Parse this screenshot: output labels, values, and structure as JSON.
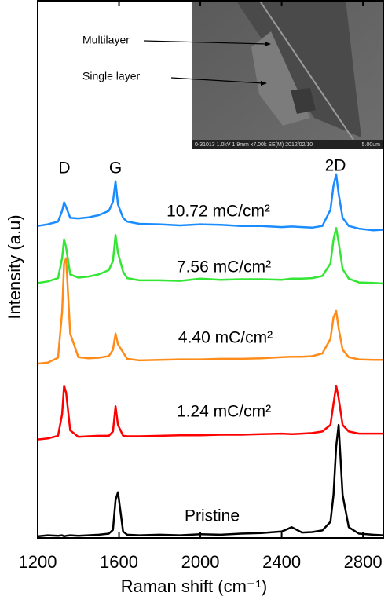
{
  "chart_data": {
    "type": "line",
    "x_label": "Raman shift (cm⁻¹)",
    "y_label": "Intensity (a.u)",
    "xlim": [
      1200,
      2900
    ],
    "ylim": [
      0,
      100
    ],
    "xticks": [
      1200,
      1600,
      2000,
      2400,
      2800
    ],
    "peak_labels": [
      "D",
      "G",
      "2D"
    ],
    "x": [
      1200,
      1250,
      1300,
      1320,
      1330,
      1340,
      1360,
      1400,
      1450,
      1500,
      1550,
      1570,
      1583,
      1595,
      1620,
      1640,
      1700,
      1800,
      1900,
      2000,
      2100,
      2200,
      2300,
      2400,
      2450,
      2500,
      2550,
      2600,
      2640,
      2655,
      2668,
      2680,
      2700,
      2730,
      2780,
      2850,
      2900
    ],
    "series": [
      {
        "name": "Pristine",
        "color": "#000000",
        "values": [
          0.3,
          0.5,
          0.4,
          0.5,
          0.3,
          0.4,
          0.5,
          0.4,
          0.5,
          0.6,
          0.8,
          1.5,
          7,
          8.5,
          1.2,
          0.6,
          0.5,
          0.6,
          0.5,
          0.7,
          0.6,
          0.8,
          0.9,
          1.2,
          2.0,
          1.0,
          1.1,
          1.4,
          3,
          8,
          17,
          21,
          8,
          2,
          0.8,
          0.6,
          0.5
        ]
      },
      {
        "name": "1.24 mC/cm²",
        "color": "#ff0000",
        "values": [
          18.3,
          18.5,
          19,
          23,
          28.3,
          27,
          20,
          18.8,
          18.9,
          19,
          19,
          19.8,
          24.5,
          21,
          19,
          18.9,
          18.9,
          19,
          19.1,
          19.1,
          19.2,
          19.2,
          19.3,
          19.4,
          19.3,
          19.4,
          19.5,
          19.8,
          21,
          25,
          28.3,
          26,
          21,
          19.8,
          19.4,
          19.4,
          19.4
        ]
      },
      {
        "name": "4.40 mC/cm²",
        "color": "#ff8c1a",
        "values": [
          32.4,
          32.6,
          33.5,
          42,
          51,
          52,
          38,
          33.6,
          33.4,
          33.5,
          33.8,
          35,
          38,
          36,
          34.5,
          33.3,
          33,
          33.1,
          33.2,
          33.2,
          33.3,
          33.3,
          33.4,
          33.6,
          33.7,
          33.7,
          33.8,
          34.3,
          37,
          41,
          42.2,
          39,
          35,
          33.6,
          33.2,
          33.1,
          33.1
        ]
      },
      {
        "name": "7.56 mC/cm²",
        "color": "#33e633",
        "values": [
          47.4,
          47.7,
          48.3,
          52,
          55.5,
          54,
          49,
          48.4,
          48.6,
          49,
          49.8,
          51.5,
          56.3,
          53,
          49.5,
          48.3,
          47.9,
          47.9,
          47.8,
          48.2,
          48,
          48.1,
          48.1,
          48,
          48.2,
          48.2,
          48.3,
          48.7,
          51,
          55.5,
          57.6,
          55,
          50,
          48.2,
          47.5,
          47.4,
          47.3
        ]
      },
      {
        "name": "10.72 mC/cm²",
        "color": "#1a8cff",
        "values": [
          58,
          58.3,
          58.8,
          60.8,
          62.4,
          61.5,
          59.5,
          59.4,
          59.6,
          60,
          60.8,
          62.5,
          66.3,
          62,
          59.5,
          58.8,
          58.4,
          58.3,
          58.1,
          58.3,
          58.2,
          58,
          58,
          57.8,
          57.9,
          57.8,
          57.7,
          58,
          61,
          65.5,
          67.6,
          64,
          59.5,
          58,
          57.5,
          57.2,
          57.3
        ]
      }
    ],
    "inset": {
      "labels": [
        "Multilayer",
        "Single layer"
      ],
      "caption": "0-31013 1.0kV 1.9mm x7.00k SE(M) 2012/02/10",
      "scale": "5.00um"
    }
  }
}
